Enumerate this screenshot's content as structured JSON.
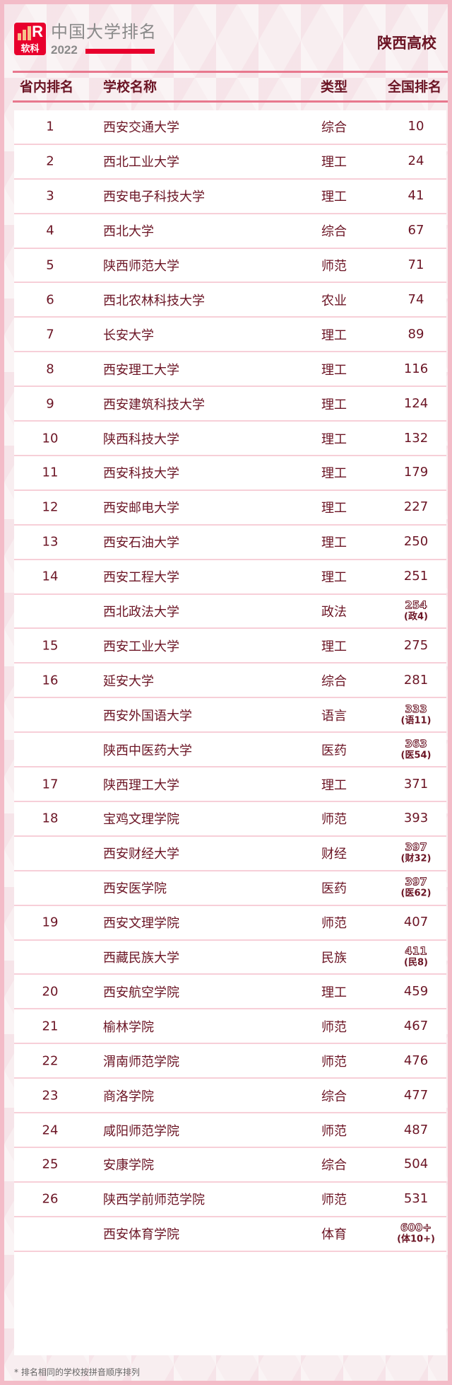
{
  "header": {
    "logo_text": "软科",
    "brand_title": "中国大学排名",
    "year": "2022",
    "region": "陕西高校"
  },
  "columns": {
    "province_rank": "省内排名",
    "school": "学校名称",
    "type": "类型",
    "national_rank": "全国排名"
  },
  "colors": {
    "text": "#6b1424",
    "accent": "#e8002d",
    "border": "#f3bcc8"
  },
  "rows": [
    {
      "rank": "1",
      "name": "西安交通大学",
      "type": "综合",
      "national": "10"
    },
    {
      "rank": "2",
      "name": "西北工业大学",
      "type": "理工",
      "national": "24"
    },
    {
      "rank": "3",
      "name": "西安电子科技大学",
      "type": "理工",
      "national": "41"
    },
    {
      "rank": "4",
      "name": "西北大学",
      "type": "综合",
      "national": "67"
    },
    {
      "rank": "5",
      "name": "陕西师范大学",
      "type": "师范",
      "national": "71"
    },
    {
      "rank": "6",
      "name": "西北农林科技大学",
      "type": "农业",
      "national": "74"
    },
    {
      "rank": "7",
      "name": "长安大学",
      "type": "理工",
      "national": "89"
    },
    {
      "rank": "8",
      "name": "西安理工大学",
      "type": "理工",
      "national": "116"
    },
    {
      "rank": "9",
      "name": "西安建筑科技大学",
      "type": "理工",
      "national": "124"
    },
    {
      "rank": "10",
      "name": "陕西科技大学",
      "type": "理工",
      "national": "132"
    },
    {
      "rank": "11",
      "name": "西安科技大学",
      "type": "理工",
      "national": "179"
    },
    {
      "rank": "12",
      "name": "西安邮电大学",
      "type": "理工",
      "national": "227"
    },
    {
      "rank": "13",
      "name": "西安石油大学",
      "type": "理工",
      "national": "250"
    },
    {
      "rank": "14",
      "name": "西安工程大学",
      "type": "理工",
      "national": "251"
    },
    {
      "rank": "",
      "name": "西北政法大学",
      "type": "政法",
      "national": "254",
      "sub": "(政4)"
    },
    {
      "rank": "15",
      "name": "西安工业大学",
      "type": "理工",
      "national": "275"
    },
    {
      "rank": "16",
      "name": "延安大学",
      "type": "综合",
      "national": "281"
    },
    {
      "rank": "",
      "name": "西安外国语大学",
      "type": "语言",
      "national": "333",
      "sub": "(语11)"
    },
    {
      "rank": "",
      "name": "陕西中医药大学",
      "type": "医药",
      "national": "363",
      "sub": "(医54)"
    },
    {
      "rank": "17",
      "name": "陕西理工大学",
      "type": "理工",
      "national": "371"
    },
    {
      "rank": "18",
      "name": "宝鸡文理学院",
      "type": "师范",
      "national": "393"
    },
    {
      "rank": "",
      "name": "西安财经大学",
      "type": "财经",
      "national": "397",
      "sub": "(财32)"
    },
    {
      "rank": "",
      "name": "西安医学院",
      "type": "医药",
      "national": "397",
      "sub": "(医62)"
    },
    {
      "rank": "19",
      "name": "西安文理学院",
      "type": "师范",
      "national": "407"
    },
    {
      "rank": "",
      "name": "西藏民族大学",
      "type": "民族",
      "national": "411",
      "sub": "(民8)"
    },
    {
      "rank": "20",
      "name": "西安航空学院",
      "type": "理工",
      "national": "459"
    },
    {
      "rank": "21",
      "name": "榆林学院",
      "type": "师范",
      "national": "467"
    },
    {
      "rank": "22",
      "name": "渭南师范学院",
      "type": "师范",
      "national": "476"
    },
    {
      "rank": "23",
      "name": "商洛学院",
      "type": "综合",
      "national": "477"
    },
    {
      "rank": "24",
      "name": "咸阳师范学院",
      "type": "师范",
      "national": "487"
    },
    {
      "rank": "25",
      "name": "安康学院",
      "type": "综合",
      "national": "504"
    },
    {
      "rank": "26",
      "name": "陕西学前师范学院",
      "type": "师范",
      "national": "531"
    },
    {
      "rank": "",
      "name": "西安体育学院",
      "type": "体育",
      "national": "600+",
      "sub": "(体10+)"
    }
  ],
  "footnote": "* 排名相同的学校按拼音顺序排列"
}
